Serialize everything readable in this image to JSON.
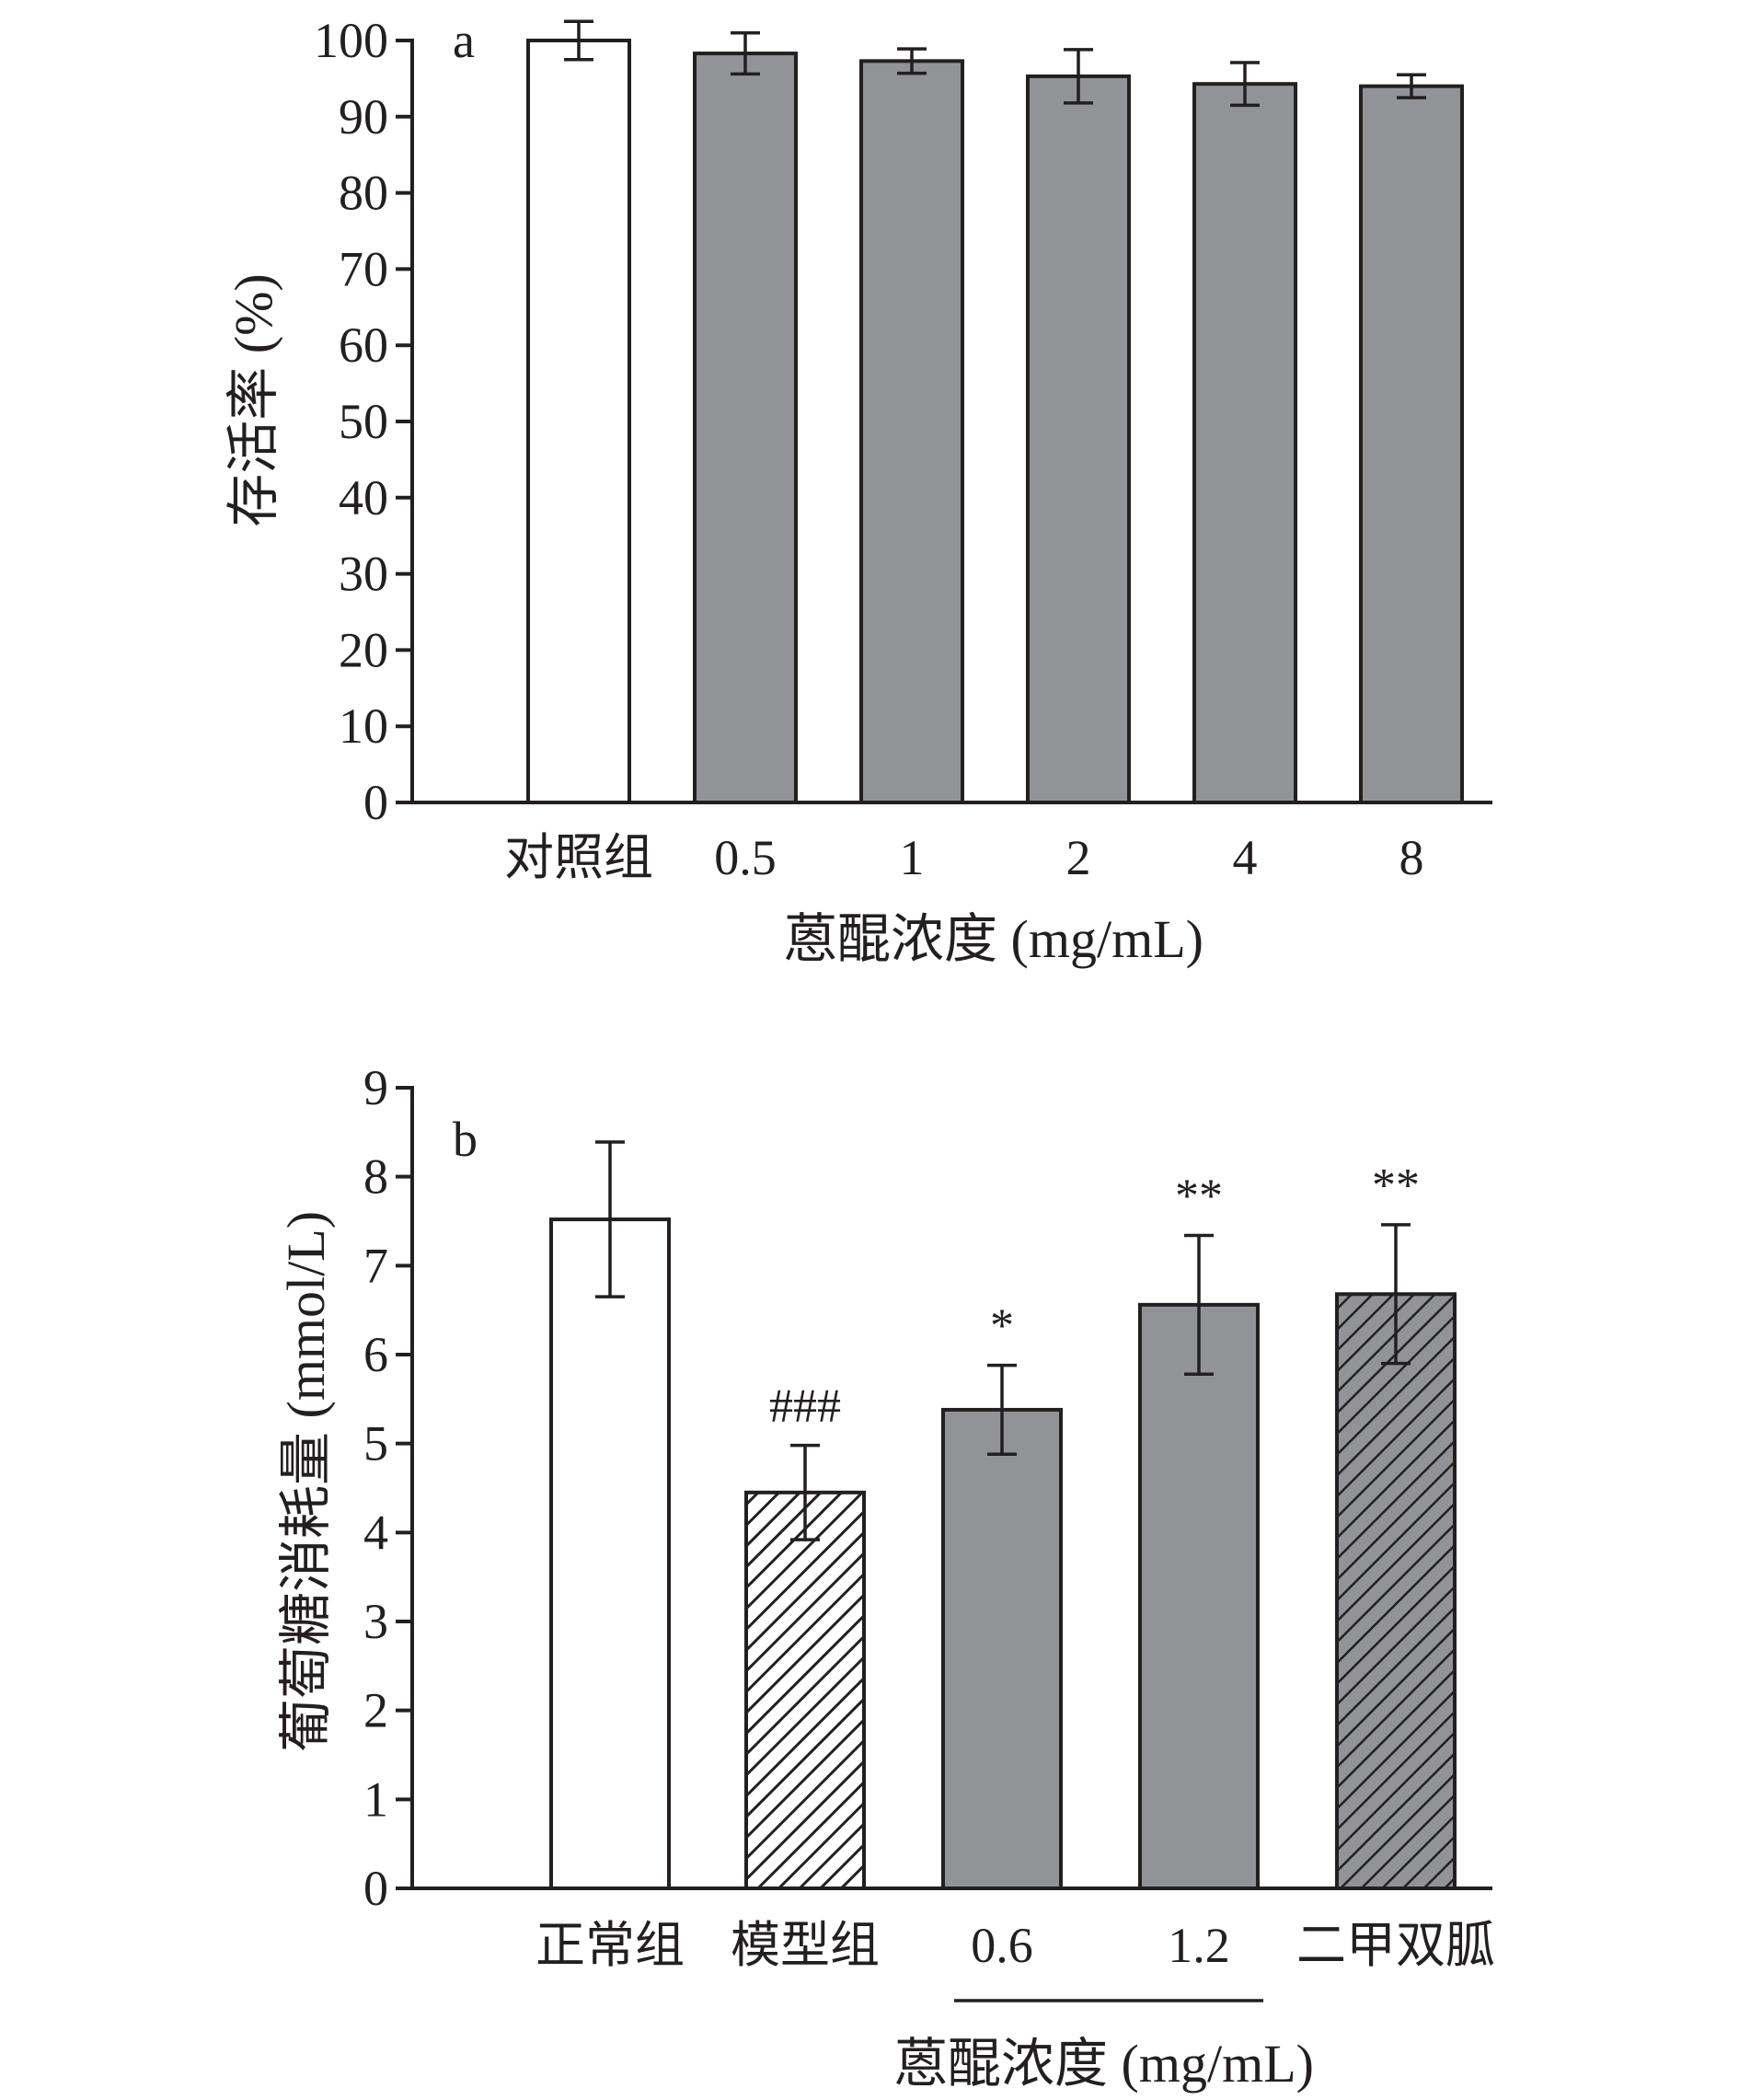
{
  "chart_data": [
    {
      "type": "bar",
      "panel_label": "a",
      "categories": [
        "对照组",
        "0.5",
        "1",
        "2",
        "4",
        "8"
      ],
      "values": [
        100,
        98.3,
        97.3,
        95.3,
        94.3,
        94
      ],
      "errors": [
        2.5,
        2.7,
        1.6,
        3.5,
        2.8,
        1.5
      ],
      "bar_fills": [
        "#ffffff",
        "#929396",
        "#929396",
        "#929396",
        "#929396",
        "#929396"
      ],
      "bar_patterns": [
        "solid",
        "solid",
        "solid",
        "solid",
        "solid",
        "solid"
      ],
      "xlabel": "蒽醌浓度 (mg/mL)",
      "ylabel": "存活率 (%)",
      "ylim": [
        0,
        100
      ],
      "yticks": [
        0,
        10,
        20,
        30,
        40,
        50,
        60,
        70,
        80,
        90,
        100
      ],
      "grid": false
    },
    {
      "type": "bar",
      "panel_label": "b",
      "categories": [
        "正常组",
        "模型组",
        "0.6",
        "1.2",
        "二甲双胍"
      ],
      "values": [
        7.52,
        4.45,
        5.38,
        6.56,
        6.68
      ],
      "errors": [
        0.87,
        0.53,
        0.5,
        0.78,
        0.78
      ],
      "bar_fills": [
        "#ffffff",
        "#ffffff",
        "#929396",
        "#929396",
        "#929396"
      ],
      "bar_patterns": [
        "solid",
        "hatch",
        "solid",
        "solid",
        "hatch"
      ],
      "significance": [
        "",
        "###",
        "*",
        "**",
        "**"
      ],
      "group_bracket_categories": [
        "0.6",
        "1.2"
      ],
      "xlabel": "蒽醌浓度 (mg/mL)",
      "ylabel": "葡萄糖消耗量 (mmol/L)",
      "ylim": [
        0,
        9
      ],
      "yticks": [
        0,
        1,
        2,
        3,
        4,
        5,
        6,
        7,
        8,
        9
      ],
      "grid": false
    }
  ],
  "colors": {
    "ink": "#231f20",
    "gray_bar": "#929396",
    "white_bar": "#ffffff"
  }
}
